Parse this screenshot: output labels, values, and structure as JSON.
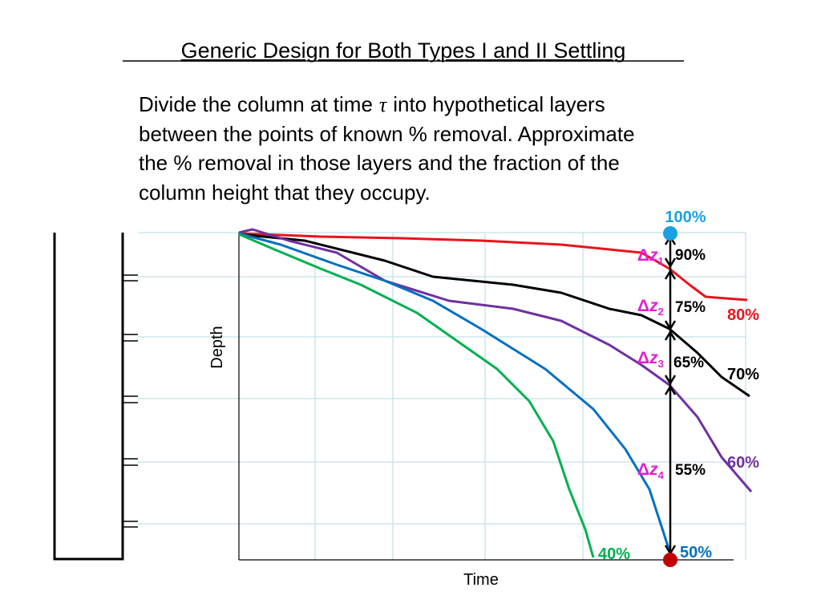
{
  "title": "Generic Design for Both Types I and II Settling",
  "body": {
    "first_line": {
      "before": "Divide the column at time",
      "symbol": "τ",
      "after": "into hypothetical layers"
    },
    "lines": [
      "between the points of known % removal. Approximate",
      "the % removal in those layers and the fraction of the",
      "column height that they occupy."
    ]
  },
  "axes": {
    "y_label": "Depth",
    "x_label": "Time"
  },
  "top_point_label": "100%",
  "curve_labels": {
    "red": "80%",
    "black": "70%",
    "purple": "60%",
    "blue": "50%",
    "green": "40%"
  },
  "layers": [
    {
      "delta": "Δ",
      "var": "z",
      "sub": "1",
      "removal": "90%"
    },
    {
      "delta": "Δ",
      "var": "z",
      "sub": "2",
      "removal": "75%"
    },
    {
      "delta": "Δ",
      "var": "z",
      "sub": "3",
      "removal": "65%"
    },
    {
      "delta": "Δ",
      "var": "z",
      "sub": "4",
      "removal": "55%"
    }
  ]
}
